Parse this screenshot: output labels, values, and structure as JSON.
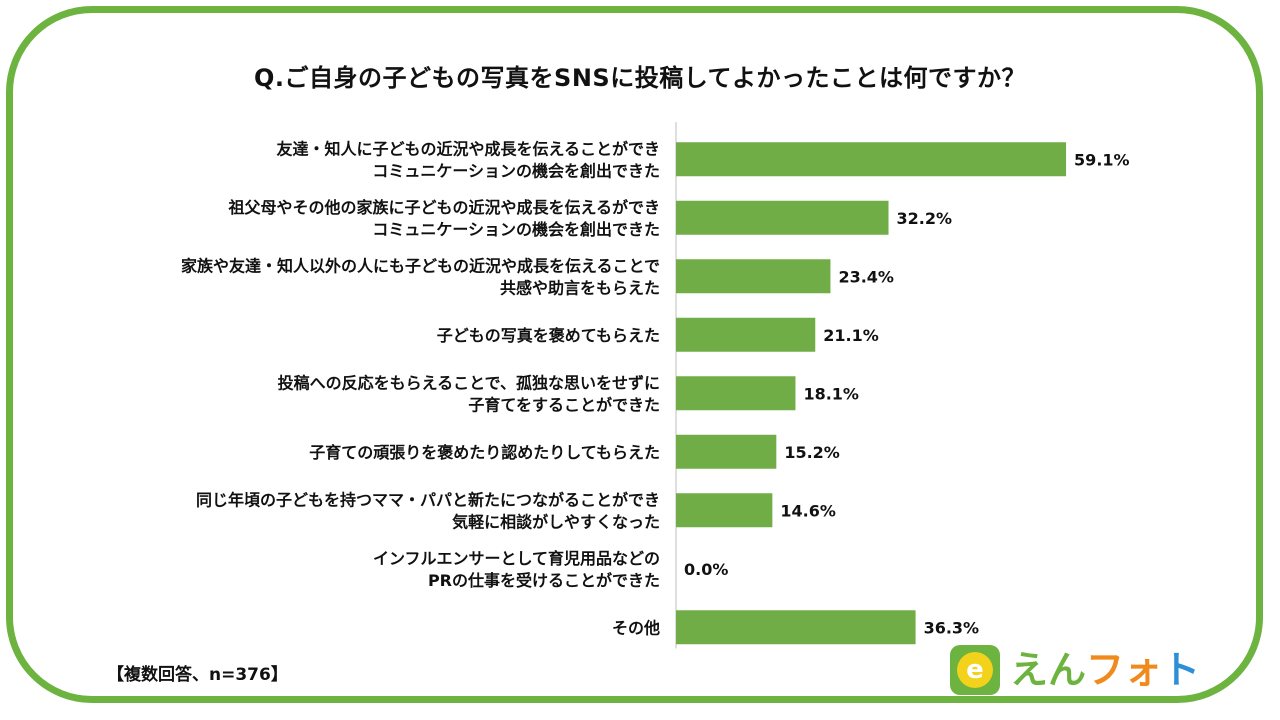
{
  "title": "Q.ご自身の子どもの写真をSNSに投稿してよかったことは何ですか？",
  "footnote": "【複数回答、n=376】",
  "logo": {
    "badge_letter": "e",
    "part1": "えん",
    "part2": "フォ",
    "part3": "ト"
  },
  "colors": {
    "frame": "#6db33f",
    "bar": "#70ad47",
    "axis": "#bfbfbf"
  },
  "chart_data": {
    "type": "bar",
    "orientation": "horizontal",
    "categories": [
      [
        "友達・知人に子どもの近況や成長を伝えることができ",
        "コミュニケーションの機会を創出できた"
      ],
      [
        "祖父母やその他の家族に子どもの近況や成長を伝えるができ",
        "コミュニケーションの機会を創出できた"
      ],
      [
        "家族や友達・知人以外の人にも子どもの近況や成長を伝えることで",
        "共感や助言をもらえた"
      ],
      [
        "子どもの写真を褒めてもらえた"
      ],
      [
        "投稿への反応をもらえることで、孤独な思いをせずに",
        "子育てをすることができた"
      ],
      [
        "子育ての頑張りを褒めたり認めたりしてもらえた"
      ],
      [
        "同じ年頃の子どもを持つママ・パパと新たにつながることができ",
        "気軽に相談がしやすくなった"
      ],
      [
        "インフルエンサーとして育児用品などの",
        "PRの仕事を受けることができた"
      ],
      [
        "その他"
      ]
    ],
    "values": [
      59.1,
      32.2,
      23.4,
      21.1,
      18.1,
      15.2,
      14.6,
      0.0,
      36.3
    ],
    "value_labels": [
      "59.1%",
      "32.2%",
      "23.4%",
      "21.1%",
      "18.1%",
      "15.2%",
      "14.6%",
      "0.0%",
      "36.3%"
    ],
    "xlim": [
      0,
      100
    ],
    "grid": false,
    "legend": "none"
  }
}
